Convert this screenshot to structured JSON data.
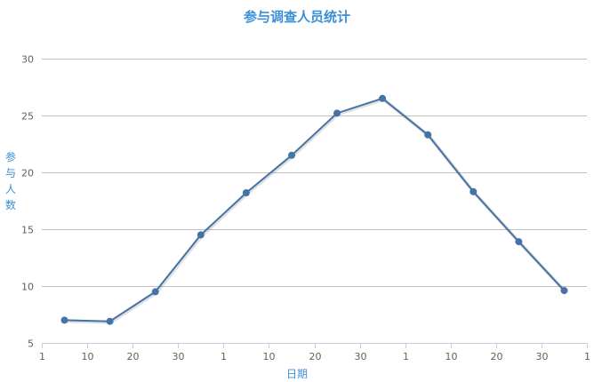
{
  "chart_data": {
    "type": "line",
    "title": "参与调查人员统计",
    "xlabel": "日期",
    "ylabel": "参与人数",
    "x_tick_labels": [
      "1",
      "10",
      "20",
      "30",
      "1",
      "10",
      "20",
      "30",
      "1",
      "10",
      "20",
      "30",
      "1"
    ],
    "ylim": [
      5,
      30
    ],
    "y_ticks": [
      5,
      10,
      15,
      20,
      25,
      30
    ],
    "grid": true,
    "legend": "none",
    "colors": {
      "line": "#4572a7",
      "title": "#3a8fd6",
      "grid": "#c0c0c0"
    },
    "series": [
      {
        "values": [
          7.0,
          6.9,
          9.5,
          14.5,
          18.2,
          21.5,
          25.2,
          26.5,
          23.3,
          18.3,
          13.9,
          9.6
        ]
      }
    ]
  }
}
